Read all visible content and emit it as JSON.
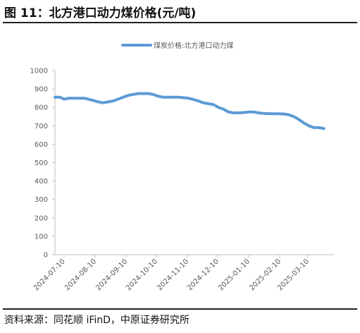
{
  "figure": {
    "title": "图 11：北方港口动力煤价格(元/吨)",
    "source": "资料来源：同花顺 iFinD，中原证券研究所"
  },
  "chart_data": {
    "type": "line",
    "title": "",
    "xlabel": "",
    "ylabel": "",
    "ylim": [
      0,
      1000
    ],
    "yticks": [
      0,
      100,
      200,
      300,
      400,
      500,
      600,
      700,
      800,
      900,
      1000
    ],
    "xticks": [
      "2024-07-10",
      "2024-08-10",
      "2024-09-10",
      "2024-10-10",
      "2024-11-10",
      "2024-12-10",
      "2025-01-10",
      "2025-02-10",
      "2025-03-10"
    ],
    "grid": false,
    "legend_position": "top",
    "color": "#5b9bd5",
    "series": [
      {
        "name": "煤炭价格:北方港口动力煤",
        "x": [
          "2024-07-01",
          "2024-07-06",
          "2024-07-10",
          "2024-07-15",
          "2024-07-20",
          "2024-07-25",
          "2024-07-30",
          "2024-08-03",
          "2024-08-08",
          "2024-08-13",
          "2024-08-18",
          "2024-08-23",
          "2024-08-28",
          "2024-09-02",
          "2024-09-07",
          "2024-09-12",
          "2024-09-17",
          "2024-09-22",
          "2024-09-27",
          "2024-10-02",
          "2024-10-07",
          "2024-10-12",
          "2024-10-17",
          "2024-10-22",
          "2024-10-27",
          "2024-11-01",
          "2024-11-06",
          "2024-11-11",
          "2024-11-16",
          "2024-11-21",
          "2024-11-26",
          "2024-12-01",
          "2024-12-06",
          "2024-12-11",
          "2024-12-16",
          "2024-12-21",
          "2024-12-26",
          "2024-12-31",
          "2025-01-05",
          "2025-01-10",
          "2025-01-15",
          "2025-01-20",
          "2025-01-25",
          "2025-01-30",
          "2025-02-04",
          "2025-02-09",
          "2025-02-14",
          "2025-02-19",
          "2025-02-24",
          "2025-03-01",
          "2025-03-06",
          "2025-03-11",
          "2025-03-16",
          "2025-03-21",
          "2025-03-26"
        ],
        "values": [
          855,
          855,
          845,
          850,
          850,
          850,
          850,
          845,
          838,
          830,
          825,
          830,
          835,
          845,
          855,
          865,
          870,
          875,
          875,
          875,
          870,
          860,
          855,
          855,
          855,
          855,
          853,
          850,
          843,
          835,
          825,
          820,
          815,
          800,
          790,
          775,
          770,
          770,
          772,
          775,
          775,
          770,
          767,
          766,
          765,
          765,
          764,
          760,
          750,
          735,
          715,
          700,
          690,
          690,
          685
        ]
      }
    ]
  }
}
